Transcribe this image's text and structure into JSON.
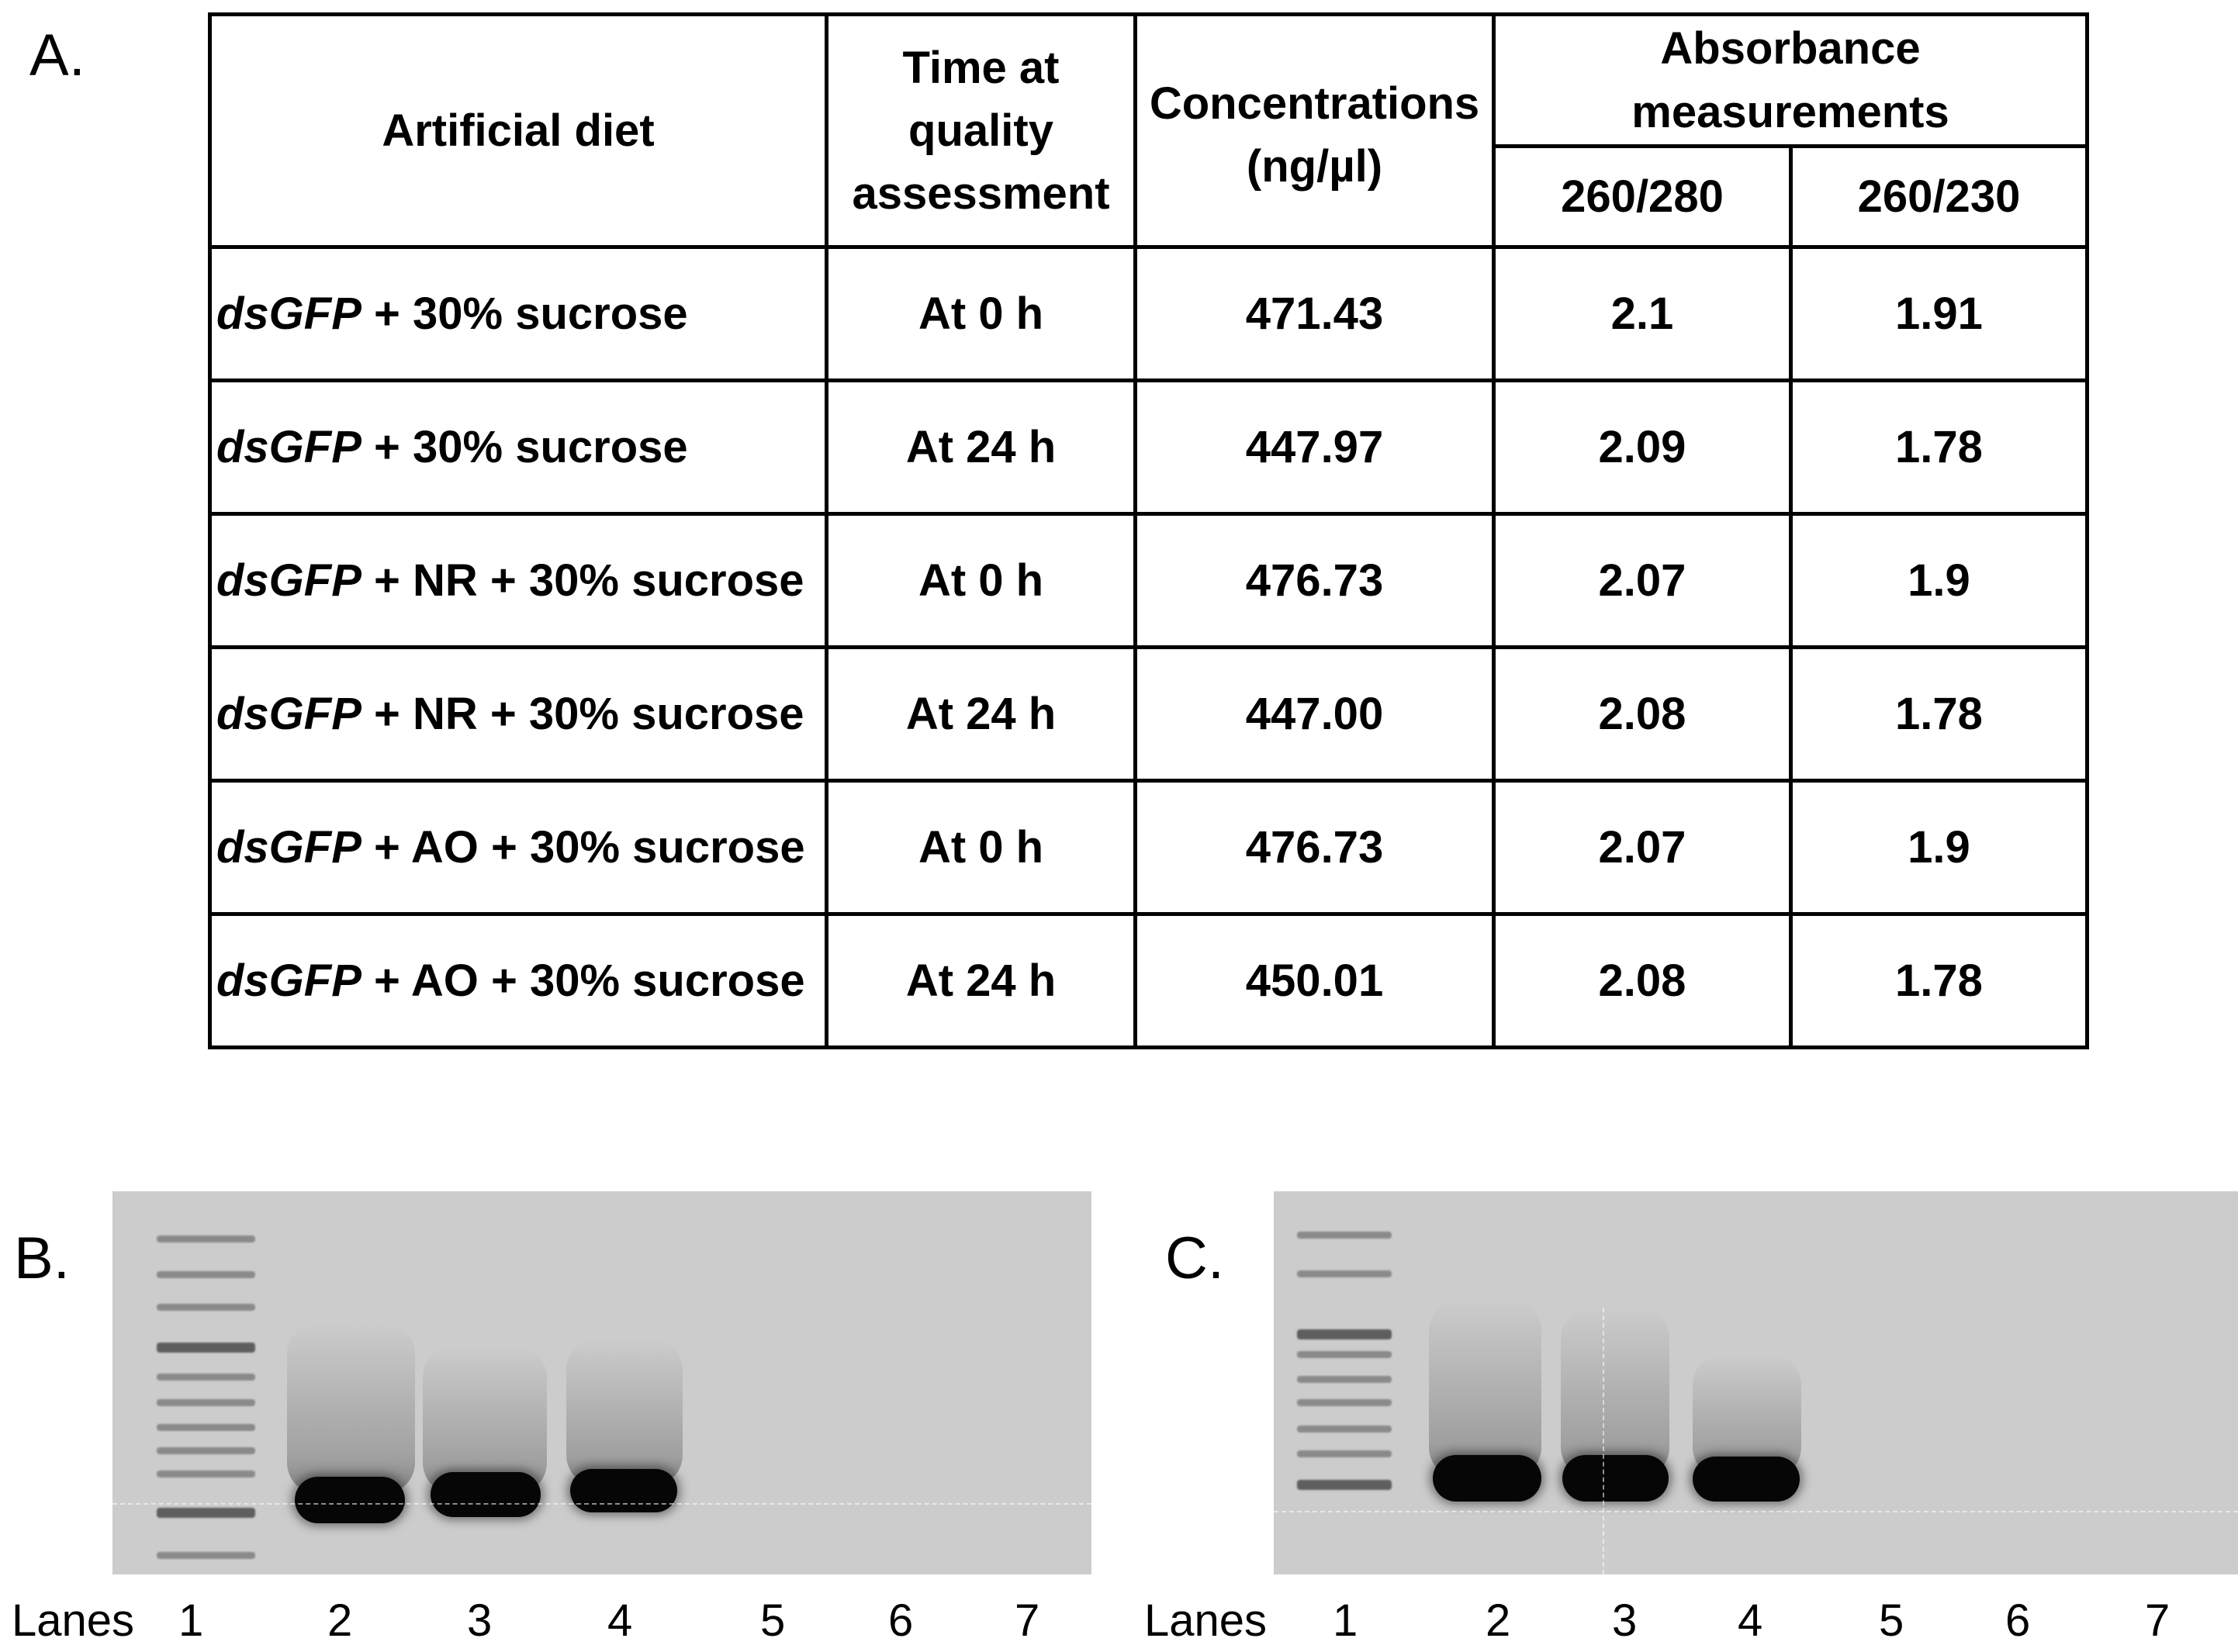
{
  "panels": {
    "a": "A.",
    "b": "B.",
    "c": "C."
  },
  "table": {
    "headers": {
      "diet": "Artificial diet",
      "time": "Time at quality assessment",
      "conc_line1": "Concentrations",
      "conc_line2": "(ng/µl)",
      "absorbance": "Absorbance measurements",
      "r260_280": "260/280",
      "r260_230": "260/230"
    },
    "rows": [
      {
        "diet_italic": "dsGFP",
        "diet_rest": " + 30% sucrose",
        "time": "At 0 h",
        "conc": "471.43",
        "a280": "2.1",
        "a230": "1.91"
      },
      {
        "diet_italic": "dsGFP",
        "diet_rest": " + 30% sucrose",
        "time": "At 24 h",
        "conc": "447.97",
        "a280": "2.09",
        "a230": "1.78"
      },
      {
        "diet_italic": "dsGFP",
        "diet_rest": " + NR + 30% sucrose",
        "time": "At 0 h",
        "conc": "476.73",
        "a280": "2.07",
        "a230": "1.9"
      },
      {
        "diet_italic": "dsGFP",
        "diet_rest": " + NR + 30% sucrose",
        "time": "At 24 h",
        "conc": "447.00",
        "a280": "2.08",
        "a230": "1.78"
      },
      {
        "diet_italic": "dsGFP",
        "diet_rest": " + AO + 30% sucrose",
        "time": "At 0 h",
        "conc": "476.73",
        "a280": "2.07",
        "a230": "1.9"
      },
      {
        "diet_italic": "dsGFP",
        "diet_rest": " + AO + 30% sucrose",
        "time": "At 24 h",
        "conc": "450.01",
        "a280": "2.08",
        "a230": "1.78"
      }
    ]
  },
  "gels": {
    "lanes_label": "Lanes",
    "lane_numbers": [
      "1",
      "2",
      "3",
      "4",
      "5",
      "6",
      "7"
    ],
    "gel_b_bands_present": [
      "2",
      "3",
      "4"
    ],
    "gel_c_bands_present": [
      "2",
      "3",
      "4"
    ]
  }
}
